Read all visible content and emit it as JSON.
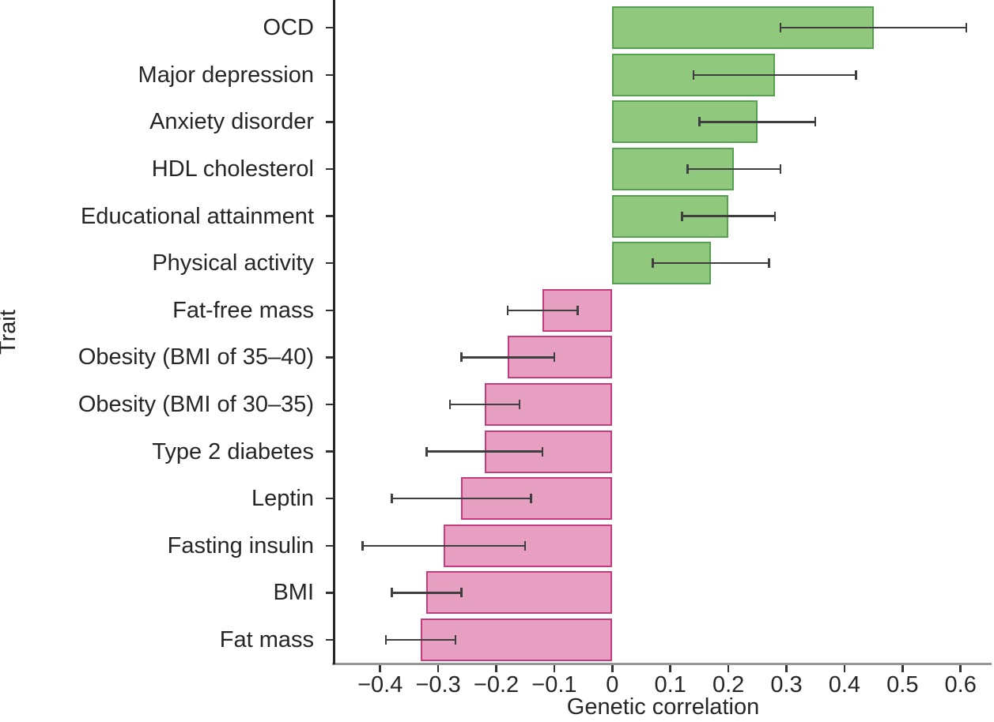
{
  "chart_data": {
    "type": "bar",
    "orientation": "horizontal",
    "xlabel": "Genetic correlation",
    "ylabel": "Trait",
    "categories": [
      "OCD",
      "Major depression",
      "Anxiety disorder",
      "HDL cholesterol",
      "Educational attainment",
      "Physical activity",
      "Fat-free mass",
      "Obesity (BMI of 35–40)",
      "Obesity (BMI of 30–35)",
      "Type 2 diabetes",
      "Leptin",
      "Fasting insulin",
      "BMI",
      "Fat mass"
    ],
    "values": [
      0.45,
      0.28,
      0.25,
      0.21,
      0.2,
      0.17,
      -0.12,
      -0.18,
      -0.22,
      -0.22,
      -0.26,
      -0.29,
      -0.32,
      -0.33
    ],
    "error_low": [
      0.29,
      0.14,
      0.15,
      0.13,
      0.12,
      0.07,
      -0.18,
      -0.26,
      -0.28,
      -0.32,
      -0.38,
      -0.43,
      -0.38,
      -0.39
    ],
    "error_high": [
      0.61,
      0.42,
      0.35,
      0.29,
      0.28,
      0.27,
      -0.06,
      -0.1,
      -0.16,
      -0.12,
      -0.14,
      -0.15,
      -0.26,
      -0.27
    ],
    "x_tick_values": [
      -0.4,
      -0.3,
      -0.2,
      -0.1,
      0,
      0.1,
      0.2,
      0.3,
      0.4,
      0.5,
      0.6
    ],
    "x_tick_labels": [
      "−0.4",
      "−0.3",
      "−0.2",
      "−0.1",
      "0",
      "0.1",
      "0.2",
      "0.3",
      "0.4",
      "0.5",
      "0.6"
    ],
    "xlim": [
      -0.48,
      0.66
    ],
    "grid": "off",
    "legend": "none",
    "colors": {
      "positive_fill": "#90c97e",
      "positive_stroke": "#56a14f",
      "negative_fill": "#e7a0c1",
      "negative_stroke": "#c43c7e",
      "error_bar": "#3f3f3f",
      "x_axis_line": "#969696",
      "y_axis_line": "#262626",
      "tick_mark": "#333333",
      "text": "#262626"
    }
  }
}
